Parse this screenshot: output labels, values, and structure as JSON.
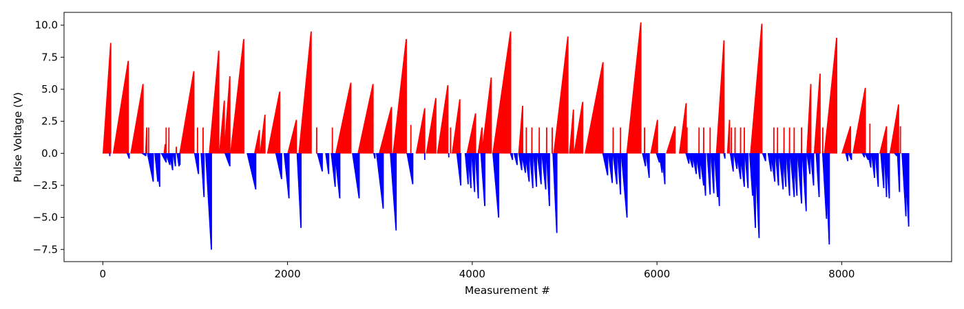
{
  "chart_data": {
    "type": "bar",
    "title": "",
    "xlabel": "Measurement #",
    "ylabel": "Pulse Voltage (V)",
    "xlim": [
      -420,
      9190
    ],
    "ylim": [
      -8.45,
      11.0
    ],
    "xticks": [
      0,
      2000,
      4000,
      6000,
      8000
    ],
    "yticks": [
      -7.5,
      -5.0,
      -2.5,
      0.0,
      2.5,
      5.0,
      7.5,
      10.0
    ],
    "ytick_labels": [
      "−7.5",
      "−5.0",
      "−2.5",
      "0.0",
      "2.5",
      "5.0",
      "7.5",
      "10.0"
    ],
    "grid": false,
    "legend": "none",
    "series": [
      {
        "color": "#ff0000",
        "description": "positive pulses (ramps from ~0 up to peak, measurement index start/end and peak voltage)",
        "ramps": [
          [
            0,
            90,
            8.6
          ],
          [
            110,
            280,
            7.2
          ],
          [
            300,
            440,
            5.4
          ],
          [
            460,
            480,
            2.0
          ],
          [
            490,
            500,
            2.0
          ],
          [
            660,
            680,
            0.7
          ],
          [
            680,
            690,
            2.0
          ],
          [
            710,
            720,
            2.0
          ],
          [
            790,
            800,
            0.5
          ],
          [
            830,
            990,
            6.4
          ],
          [
            1020,
            1030,
            2.0
          ],
          [
            1080,
            1090,
            2.0
          ],
          [
            1150,
            1260,
            8.0
          ],
          [
            1260,
            1320,
            4.1
          ],
          [
            1310,
            1380,
            6.0
          ],
          [
            1380,
            1530,
            8.9
          ],
          [
            1640,
            1700,
            1.8
          ],
          [
            1700,
            1760,
            3.0
          ],
          [
            1780,
            1920,
            4.8
          ],
          [
            2000,
            2100,
            2.6
          ],
          [
            2120,
            2260,
            9.5
          ],
          [
            2310,
            2320,
            2.0
          ],
          [
            2480,
            2490,
            2.0
          ],
          [
            2520,
            2690,
            5.5
          ],
          [
            2760,
            2930,
            5.4
          ],
          [
            2990,
            3130,
            3.6
          ],
          [
            3140,
            3290,
            8.9
          ],
          [
            3330,
            3340,
            2.2
          ],
          [
            3390,
            3490,
            3.5
          ],
          [
            3500,
            3610,
            4.3
          ],
          [
            3620,
            3740,
            5.3
          ],
          [
            3760,
            3770,
            2.0
          ],
          [
            3780,
            3870,
            4.2
          ],
          [
            3940,
            4040,
            3.1
          ],
          [
            4060,
            4110,
            2.0
          ],
          [
            4100,
            4210,
            5.9
          ],
          [
            4220,
            4420,
            9.5
          ],
          [
            4500,
            4550,
            3.7
          ],
          [
            4580,
            4590,
            2.0
          ],
          [
            4640,
            4650,
            2.0
          ],
          [
            4720,
            4730,
            2.0
          ],
          [
            4800,
            4810,
            2.0
          ],
          [
            4860,
            4870,
            2.0
          ],
          [
            4880,
            5040,
            9.1
          ],
          [
            5050,
            5100,
            3.4
          ],
          [
            5100,
            5200,
            4.0
          ],
          [
            5220,
            5420,
            7.1
          ],
          [
            5520,
            5530,
            2.0
          ],
          [
            5600,
            5610,
            2.0
          ],
          [
            5670,
            5830,
            10.2
          ],
          [
            5860,
            5870,
            2.0
          ],
          [
            5930,
            6010,
            2.6
          ],
          [
            6100,
            6200,
            2.1
          ],
          [
            6240,
            6320,
            3.9
          ],
          [
            6320,
            6330,
            2.0
          ],
          [
            6450,
            6460,
            2.0
          ],
          [
            6500,
            6510,
            2.0
          ],
          [
            6570,
            6580,
            2.0
          ],
          [
            6640,
            6730,
            8.8
          ],
          [
            6760,
            6790,
            2.6
          ],
          [
            6800,
            6810,
            2.0
          ],
          [
            6840,
            6850,
            2.0
          ],
          [
            6900,
            6910,
            2.0
          ],
          [
            6940,
            6950,
            2.0
          ],
          [
            7010,
            7140,
            10.1
          ],
          [
            7260,
            7270,
            2.0
          ],
          [
            7300,
            7310,
            2.0
          ],
          [
            7370,
            7380,
            2.0
          ],
          [
            7430,
            7440,
            2.0
          ],
          [
            7480,
            7490,
            2.0
          ],
          [
            7560,
            7570,
            2.0
          ],
          [
            7620,
            7670,
            5.4
          ],
          [
            7700,
            7770,
            6.2
          ],
          [
            7790,
            7800,
            2.0
          ],
          [
            7810,
            7950,
            9.0
          ],
          [
            8000,
            8100,
            2.1
          ],
          [
            8120,
            8260,
            5.1
          ],
          [
            8300,
            8310,
            2.3
          ],
          [
            8410,
            8490,
            2.1
          ],
          [
            8520,
            8620,
            3.8
          ],
          [
            8630,
            8640,
            2.1
          ]
        ]
      },
      {
        "color": "#0000ff",
        "description": "negative pulses (ramps from ~0 down to minimum, measurement index start/end and minimum voltage)",
        "ramps": [
          [
            70,
            80,
            -0.2
          ],
          [
            260,
            290,
            -0.4
          ],
          [
            420,
            470,
            -0.2
          ],
          [
            480,
            550,
            -2.2
          ],
          [
            560,
            600,
            -2.2
          ],
          [
            580,
            620,
            -2.6
          ],
          [
            630,
            690,
            -0.7
          ],
          [
            680,
            730,
            -0.9
          ],
          [
            720,
            760,
            -1.3
          ],
          [
            760,
            790,
            -1.0
          ],
          [
            800,
            830,
            -1.0
          ],
          [
            820,
            840,
            -0.9
          ],
          [
            990,
            1040,
            -1.6
          ],
          [
            1060,
            1100,
            -3.4
          ],
          [
            1110,
            1180,
            -7.5
          ],
          [
            1320,
            1380,
            -1.0
          ],
          [
            1560,
            1660,
            -2.8
          ],
          [
            1870,
            1940,
            -2.0
          ],
          [
            1960,
            2020,
            -3.5
          ],
          [
            2100,
            2150,
            -5.8
          ],
          [
            2320,
            2380,
            -1.4
          ],
          [
            2410,
            2450,
            -1.6
          ],
          [
            2470,
            2520,
            -2.6
          ],
          [
            2510,
            2570,
            -3.5
          ],
          [
            2700,
            2780,
            -3.5
          ],
          [
            2930,
            2950,
            -0.4
          ],
          [
            2960,
            3040,
            -4.3
          ],
          [
            3110,
            3180,
            -6.0
          ],
          [
            3290,
            3360,
            -2.4
          ],
          [
            3480,
            3490,
            -0.5
          ],
          [
            3740,
            3750,
            -0.3
          ],
          [
            3830,
            3880,
            -2.5
          ],
          [
            3920,
            3960,
            -2.4
          ],
          [
            3950,
            3990,
            -2.7
          ],
          [
            3990,
            4030,
            -3.0
          ],
          [
            4030,
            4070,
            -3.5
          ],
          [
            4090,
            4140,
            -4.1
          ],
          [
            4220,
            4290,
            -5.0
          ],
          [
            4410,
            4440,
            -0.5
          ],
          [
            4450,
            4490,
            -0.9
          ],
          [
            4500,
            4540,
            -1.3
          ],
          [
            4530,
            4580,
            -1.5
          ],
          [
            4570,
            4620,
            -2.2
          ],
          [
            4620,
            4660,
            -2.7
          ],
          [
            4660,
            4700,
            -2.6
          ],
          [
            4700,
            4750,
            -2.4
          ],
          [
            4750,
            4800,
            -2.8
          ],
          [
            4800,
            4840,
            -4.1
          ],
          [
            4870,
            4920,
            -6.2
          ],
          [
            5410,
            5470,
            -1.7
          ],
          [
            5470,
            5520,
            -2.3
          ],
          [
            5520,
            5570,
            -2.4
          ],
          [
            5570,
            5610,
            -3.2
          ],
          [
            5610,
            5680,
            -5.0
          ],
          [
            5840,
            5880,
            -1.0
          ],
          [
            5880,
            5920,
            -1.9
          ],
          [
            5990,
            6030,
            -0.7
          ],
          [
            6020,
            6060,
            -1.5
          ],
          [
            6050,
            6090,
            -2.4
          ],
          [
            6310,
            6350,
            -0.8
          ],
          [
            6340,
            6390,
            -1.1
          ],
          [
            6380,
            6430,
            -1.6
          ],
          [
            6420,
            6470,
            -2.0
          ],
          [
            6460,
            6510,
            -2.5
          ],
          [
            6490,
            6530,
            -3.3
          ],
          [
            6540,
            6580,
            -3.2
          ],
          [
            6580,
            6620,
            -3.1
          ],
          [
            6620,
            6660,
            -3.4
          ],
          [
            6640,
            6680,
            -4.1
          ],
          [
            6720,
            6740,
            -0.4
          ],
          [
            6790,
            6830,
            -1.4
          ],
          [
            6830,
            6870,
            -1.2
          ],
          [
            6860,
            6910,
            -2.0
          ],
          [
            6900,
            6950,
            -2.6
          ],
          [
            6950,
            6990,
            -2.7
          ],
          [
            7000,
            7040,
            -3.3
          ],
          [
            7020,
            7070,
            -5.8
          ],
          [
            7060,
            7110,
            -6.6
          ],
          [
            7140,
            7180,
            -0.6
          ],
          [
            7200,
            7240,
            -1.4
          ],
          [
            7230,
            7280,
            -2.2
          ],
          [
            7280,
            7320,
            -2.5
          ],
          [
            7320,
            7370,
            -2.8
          ],
          [
            7360,
            7400,
            -2.6
          ],
          [
            7400,
            7440,
            -3.3
          ],
          [
            7440,
            7490,
            -3.4
          ],
          [
            7480,
            7520,
            -3.3
          ],
          [
            7520,
            7570,
            -3.9
          ],
          [
            7570,
            7620,
            -4.5
          ],
          [
            7620,
            7660,
            -1.6
          ],
          [
            7660,
            7700,
            -2.5
          ],
          [
            7720,
            7760,
            -3.4
          ],
          [
            7790,
            7840,
            -5.1
          ],
          [
            7820,
            7870,
            -7.1
          ],
          [
            8040,
            8070,
            -0.6
          ],
          [
            8070,
            8110,
            -0.5
          ],
          [
            8220,
            8250,
            -0.3
          ],
          [
            8250,
            8290,
            -0.5
          ],
          [
            8280,
            8320,
            -1.1
          ],
          [
            8320,
            8360,
            -1.9
          ],
          [
            8360,
            8400,
            -2.6
          ],
          [
            8420,
            8460,
            -2.7
          ],
          [
            8460,
            8490,
            -3.4
          ],
          [
            8480,
            8520,
            -3.5
          ],
          [
            8570,
            8600,
            -0.2
          ],
          [
            8600,
            8630,
            -3.0
          ],
          [
            8650,
            8700,
            -4.9
          ],
          [
            8680,
            8730,
            -5.7
          ]
        ]
      }
    ]
  }
}
